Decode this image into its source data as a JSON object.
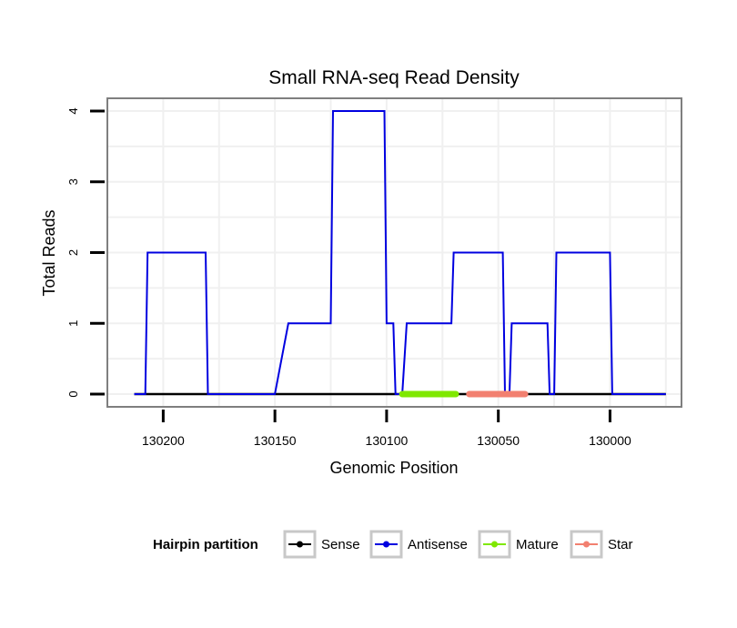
{
  "chart_data": {
    "type": "line",
    "title": "Small RNA-seq Read Density",
    "xlabel": "Genomic Position",
    "ylabel": "Total Reads",
    "x_reversed": true,
    "xlim": [
      130225,
      129968
    ],
    "ylim": [
      -0.18,
      4.18
    ],
    "x_ticks": [
      130200,
      130150,
      130100,
      130050,
      130000
    ],
    "y_ticks": [
      0,
      1,
      2,
      3,
      4
    ],
    "x_tick_labels": [
      "130200",
      "130150",
      "130100",
      "130050",
      "130000"
    ],
    "y_tick_labels": [
      "0",
      "1",
      "2",
      "3",
      "4"
    ],
    "grid": true,
    "legend": {
      "title": "Hairpin partition",
      "position": "bottom",
      "entries": [
        "Sense",
        "Antisense",
        "Mature",
        "Star"
      ]
    },
    "colors": {
      "Sense": "#000000",
      "Antisense": "#0000e0",
      "Mature": "#7fe800",
      "Star": "#f28070"
    },
    "series": [
      {
        "name": "Sense",
        "x": [
          130213,
          129975
        ],
        "y": [
          0,
          0
        ]
      },
      {
        "name": "Antisense",
        "x": [
          130213,
          130208,
          130207,
          130181,
          130180,
          130154,
          130153,
          130150,
          130144,
          130125,
          130124,
          130101,
          130100,
          130097,
          130096,
          130093,
          130091,
          130071,
          130070,
          130048,
          130047,
          130045,
          130044,
          130028,
          130027,
          130025,
          130024,
          130000,
          129999,
          129975
        ],
        "y": [
          0,
          0,
          2,
          2,
          0,
          0,
          0,
          0,
          1,
          1,
          4,
          4,
          1,
          1,
          0,
          0,
          1,
          1,
          2,
          2,
          0,
          0,
          1,
          1,
          0,
          0,
          2,
          2,
          0,
          0
        ]
      },
      {
        "name": "Mature",
        "x": [
          130093,
          130069
        ],
        "y": [
          0,
          0
        ]
      },
      {
        "name": "Star",
        "x": [
          130063,
          130038
        ],
        "y": [
          0,
          0
        ]
      }
    ]
  }
}
